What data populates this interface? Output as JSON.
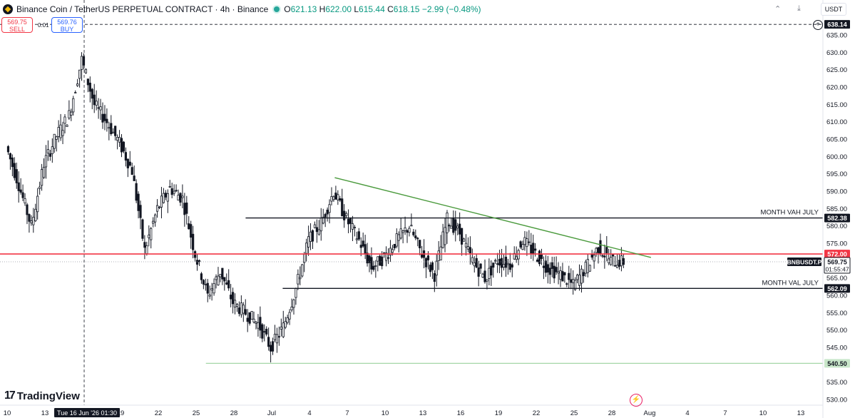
{
  "header": {
    "title": "Binance Coin / TetherUS PERPETUAL CONTRACT · 4h · Binance",
    "ohlc": {
      "o_label": "O",
      "o": "621.13",
      "h_label": "H",
      "h": "622.00",
      "l_label": "L",
      "l": "615.44",
      "c_label": "C",
      "c": "618.15",
      "change": "−2.99 (−0.48%)"
    }
  },
  "trade": {
    "sell_price": "569.75",
    "sell_label": "SELL",
    "spread": "0.01",
    "buy_price": "569.76",
    "buy_label": "BUY"
  },
  "currency": "USDT",
  "brand": "TradingView",
  "crosshair": {
    "date_label": "Tue 16 Jun '26  01:30",
    "price_label": "638.14"
  },
  "colors": {
    "up": "#089981",
    "down": "#f23645",
    "candle": "#131722",
    "trendline": "#4a9a3c",
    "support": "#2e7d32",
    "red_line": "#f23645"
  },
  "chart_data": {
    "type": "candlestick",
    "symbol": "BNBUSDT.P",
    "timeframe": "4h",
    "y_axis": {
      "range": [
        530,
        640
      ],
      "ticks": [
        530,
        535,
        540,
        545,
        550,
        555,
        560,
        565,
        570,
        575,
        580,
        585,
        590,
        595,
        600,
        605,
        610,
        615,
        620,
        625,
        630,
        635
      ]
    },
    "x_axis": {
      "tick_labels": [
        "10",
        "13",
        "16",
        "19",
        "22",
        "25",
        "28",
        "Jul",
        "4",
        "7",
        "10",
        "13",
        "16",
        "19",
        "22",
        "25",
        "28",
        "Aug",
        "4",
        "7",
        "10",
        "13"
      ]
    },
    "levels": [
      {
        "label": "MONTH VAH JULY",
        "price": 582.38,
        "price_label": "582.38"
      },
      {
        "label": "MONTH VAL JULY",
        "price": 562.09,
        "price_label": "562.09"
      },
      {
        "label": "",
        "price": 572.0,
        "price_label": "572.00"
      },
      {
        "label": "",
        "price": 540.5,
        "price_label": "540.50"
      }
    ],
    "trendline": {
      "from": {
        "date": "Jul 6",
        "price": 594
      },
      "to": {
        "date": "Aug 1",
        "price": 571
      }
    },
    "last_price": {
      "symbol": "BNBUSDT.P",
      "price": "569.75",
      "countdown": "01:55:47"
    },
    "price_path": [
      [
        "Jun 10",
        603
      ],
      [
        "Jun 11",
        592
      ],
      [
        "Jun 12",
        580
      ],
      [
        "Jun 13",
        598
      ],
      [
        "Jun 14",
        606
      ],
      [
        "Jun 15",
        612
      ],
      [
        "Jun 16",
        628
      ],
      [
        "Jun 17",
        615
      ],
      [
        "Jun 18",
        610
      ],
      [
        "Jun 19",
        604
      ],
      [
        "Jun 20",
        596
      ],
      [
        "Jun 21",
        573
      ],
      [
        "Jun 22",
        585
      ],
      [
        "Jun 23",
        591
      ],
      [
        "Jun 24",
        588
      ],
      [
        "Jun 25",
        572
      ],
      [
        "Jun 26",
        560
      ],
      [
        "Jun 27",
        567
      ],
      [
        "Jun 28",
        558
      ],
      [
        "Jun 29",
        555
      ],
      [
        "Jun 30",
        552
      ],
      [
        "Jul 1",
        545
      ],
      [
        "Jul 2",
        551
      ],
      [
        "Jul 3",
        562
      ],
      [
        "Jul 4",
        576
      ],
      [
        "Jul 5",
        581
      ],
      [
        "Jul 6",
        590
      ],
      [
        "Jul 7",
        582
      ],
      [
        "Jul 8",
        576
      ],
      [
        "Jul 9",
        568
      ],
      [
        "Jul 10",
        571
      ],
      [
        "Jul 11",
        576
      ],
      [
        "Jul 12",
        580
      ],
      [
        "Jul 13",
        572
      ],
      [
        "Jul 14",
        566
      ],
      [
        "Jul 15",
        582
      ],
      [
        "Jul 16",
        578
      ],
      [
        "Jul 17",
        570
      ],
      [
        "Jul 18",
        565
      ],
      [
        "Jul 19",
        570
      ],
      [
        "Jul 20",
        569
      ],
      [
        "Jul 21",
        576
      ],
      [
        "Jul 22",
        572
      ],
      [
        "Jul 23",
        568
      ],
      [
        "Jul 24",
        566
      ],
      [
        "Jul 25",
        563
      ],
      [
        "Jul 26",
        568
      ],
      [
        "Jul 27",
        574
      ],
      [
        "Jul 28",
        570
      ],
      [
        "Jul 29",
        569.75
      ]
    ]
  }
}
